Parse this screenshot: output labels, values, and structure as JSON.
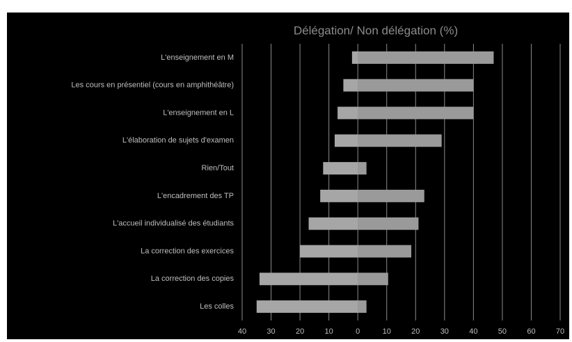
{
  "chart_data": {
    "type": "floating-bar",
    "title": "Délégation/ Non délégation (%)",
    "categories": [
      "L'enseignement en M",
      "Les cours en présentiel (cours en amphithéâtre)",
      "L'enseignement en L",
      "L'élaboration de sujets d'examen",
      "Rien/Tout",
      "L'encadrement des TP",
      "L'accueil individualisé des étudiants",
      "La correction des exercices",
      "La correction des copies",
      "Les colles"
    ],
    "series": [
      {
        "color": "#a6a6a6",
        "values": [
          -2,
          -5,
          -7,
          -8,
          -12,
          -13,
          -17,
          -20,
          -34,
          -35
        ]
      },
      {
        "color": "#9a9a9a",
        "values": [
          47,
          40,
          40,
          29,
          3,
          23,
          21,
          18.5,
          10.5,
          3
        ]
      }
    ],
    "xlim": [
      -40,
      70
    ],
    "xticks": [
      {
        "value": -40,
        "label": "40"
      },
      {
        "value": -30,
        "label": "30"
      },
      {
        "value": -20,
        "label": "20"
      },
      {
        "value": -10,
        "label": "10"
      },
      0,
      10,
      20,
      30,
      40,
      50,
      60,
      70
    ],
    "grid": true
  }
}
